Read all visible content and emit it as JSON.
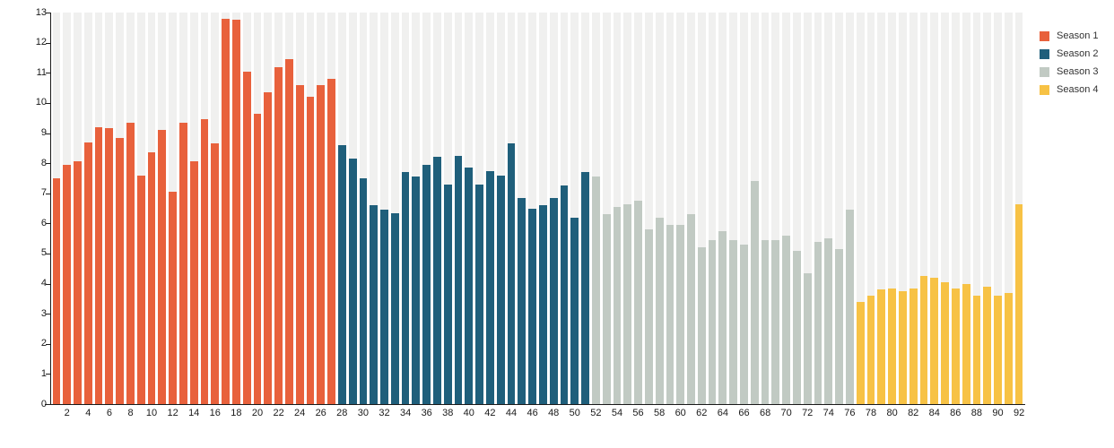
{
  "chart_data": {
    "type": "bar",
    "title": "",
    "xlabel": "",
    "ylabel": "",
    "ylim": [
      0,
      13
    ],
    "y_ticks": [
      0,
      1,
      2,
      3,
      4,
      5,
      6,
      7,
      8,
      9,
      10,
      11,
      12,
      13
    ],
    "x_tick_labels": [
      "2",
      "4",
      "6",
      "8",
      "10",
      "12",
      "14",
      "16",
      "18",
      "20",
      "22",
      "24",
      "26",
      "28",
      "30",
      "32",
      "34",
      "36",
      "38",
      "40",
      "42",
      "44",
      "46",
      "48",
      "50",
      "52",
      "54",
      "56",
      "58",
      "60",
      "62",
      "64",
      "66",
      "68",
      "70",
      "72",
      "74",
      "76",
      "78",
      "80",
      "82",
      "84",
      "86",
      "88",
      "90",
      "92"
    ],
    "grid": "background-bands",
    "legend_position": "top-right",
    "series": [
      {
        "name": "Season 1",
        "color": "#E8613C",
        "start_episode": 1,
        "values": [
          7.5,
          7.95,
          8.05,
          8.7,
          9.2,
          9.15,
          8.85,
          9.35,
          7.6,
          8.35,
          9.1,
          7.05,
          9.35,
          8.05,
          9.45,
          8.65,
          12.8,
          12.75,
          11.05,
          9.65,
          10.35,
          11.2,
          11.45,
          10.6,
          10.2,
          10.6,
          10.8
        ]
      },
      {
        "name": "Season 2",
        "color": "#1F5F7B",
        "start_episode": 28,
        "values": [
          8.6,
          8.15,
          7.5,
          6.6,
          6.45,
          6.35,
          7.7,
          7.55,
          7.95,
          8.2,
          7.3,
          8.25,
          7.85,
          7.3,
          7.75,
          7.6,
          8.65,
          6.85,
          6.5,
          6.6,
          6.85,
          7.25,
          6.2,
          7.7
        ]
      },
      {
        "name": "Season 3",
        "color": "#C1CAC3",
        "start_episode": 52,
        "values": [
          7.55,
          6.3,
          6.55,
          6.65,
          6.75,
          5.8,
          6.2,
          5.95,
          5.95,
          6.3,
          5.2,
          5.45,
          5.75,
          5.45,
          5.3,
          7.4,
          5.45,
          5.45,
          5.6,
          5.1,
          4.35,
          5.4,
          5.5,
          5.15,
          6.45
        ]
      },
      {
        "name": "Season 4",
        "color": "#F7C245",
        "start_episode": 77,
        "values": [
          3.4,
          3.6,
          3.8,
          3.85,
          3.75,
          3.85,
          4.25,
          4.2,
          4.05,
          3.85,
          4.0,
          3.6,
          3.9,
          3.6,
          3.7,
          6.65
        ]
      }
    ]
  },
  "legend": {
    "items": [
      {
        "label": "Season 1"
      },
      {
        "label": "Season 2"
      },
      {
        "label": "Season 3"
      },
      {
        "label": "Season 4"
      }
    ]
  },
  "colors": {
    "background_band": "#F0F0EF",
    "axis": "#1A1A1A",
    "page_background": "#FFFFFF"
  }
}
